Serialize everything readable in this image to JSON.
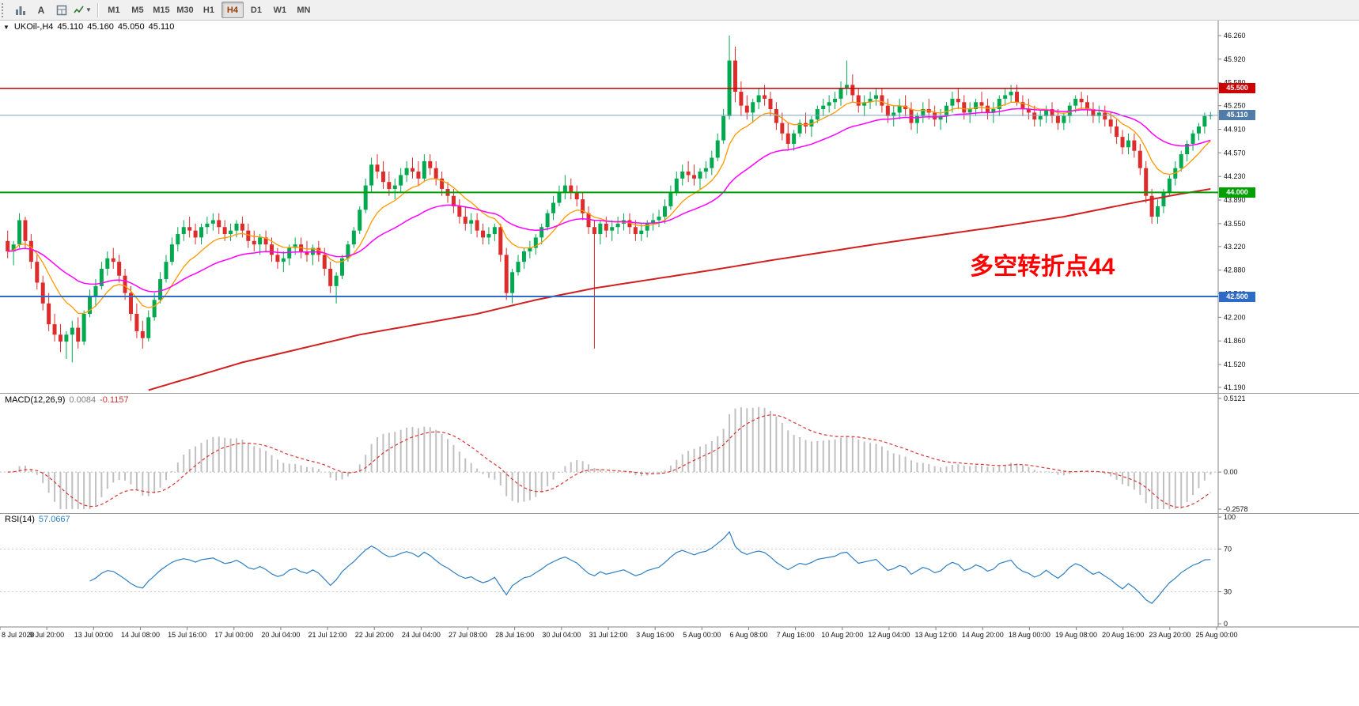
{
  "toolbar": {
    "text_tool_label": "A",
    "timeframes": [
      "M1",
      "M5",
      "M15",
      "M30",
      "H1",
      "H4",
      "D1",
      "W1",
      "MN"
    ],
    "active_timeframe": "H4"
  },
  "symbol_line": {
    "symbol": "UKOil-,H4",
    "open": "45.110",
    "high": "45.160",
    "low": "45.050",
    "close": "45.110"
  },
  "annotation": {
    "text": "多空转折点44",
    "color": "#FF0000"
  },
  "chart_data": {
    "type": "candlestick",
    "symbol": "UKOil-",
    "timeframe": "H4",
    "price_axis": {
      "max": 46.26,
      "min": 41.19,
      "ticks": [
        "46.260",
        "45.920",
        "45.580",
        "45.250",
        "44.910",
        "44.570",
        "44.230",
        "43.890",
        "43.550",
        "43.220",
        "42.880",
        "42.540",
        "42.200",
        "41.860",
        "41.520",
        "41.190"
      ]
    },
    "hlines": [
      {
        "price": 45.5,
        "label": "45.500",
        "color": "#CC0000",
        "width": 1.5
      },
      {
        "price": 44.0,
        "label": "44.000",
        "color": "#00A000",
        "width": 2
      },
      {
        "price": 42.5,
        "label": "42.500",
        "color": "#2E6BC8",
        "width": 2
      }
    ],
    "current_price": {
      "value": 45.11,
      "label": "45.110",
      "line_color": "#7AA0BE",
      "tag_color": "#4F7CA8"
    },
    "colors": {
      "bull": "#00A94F",
      "bear": "#DD2C2C",
      "ma_fast": "#FF9900",
      "ma_mid": "#FF00FF",
      "ma_slow": "#D02020"
    },
    "ma_fast_period": 10,
    "ma_mid_period": 30,
    "ma_slow_points": [
      [
        24,
        41.15
      ],
      [
        40,
        41.55
      ],
      [
        60,
        41.95
      ],
      [
        80,
        42.25
      ],
      [
        90,
        42.45
      ],
      [
        100,
        42.62
      ],
      [
        110,
        42.75
      ],
      [
        120,
        42.88
      ],
      [
        130,
        43.02
      ],
      [
        140,
        43.15
      ],
      [
        150,
        43.28
      ],
      [
        160,
        43.4
      ],
      [
        170,
        43.52
      ],
      [
        180,
        43.65
      ],
      [
        190,
        43.82
      ],
      [
        198,
        43.95
      ],
      [
        205,
        44.05
      ]
    ],
    "candles": [
      [
        43.3,
        43.45,
        43.05,
        43.15
      ],
      [
        43.15,
        43.3,
        42.95,
        43.25
      ],
      [
        43.25,
        43.7,
        43.2,
        43.6
      ],
      [
        43.6,
        43.65,
        43.2,
        43.3
      ],
      [
        43.3,
        43.4,
        42.9,
        43.0
      ],
      [
        43.0,
        43.1,
        42.6,
        42.7
      ],
      [
        42.7,
        42.8,
        42.3,
        42.4
      ],
      [
        42.4,
        42.55,
        42.0,
        42.1
      ],
      [
        42.1,
        42.25,
        41.85,
        41.95
      ],
      [
        41.95,
        42.1,
        41.7,
        41.85
      ],
      [
        41.85,
        42.0,
        41.6,
        41.95
      ],
      [
        41.95,
        42.15,
        41.55,
        42.05
      ],
      [
        42.05,
        42.2,
        41.75,
        41.85
      ],
      [
        41.85,
        42.3,
        41.8,
        42.25
      ],
      [
        42.25,
        42.6,
        42.2,
        42.5
      ],
      [
        42.5,
        42.75,
        42.35,
        42.65
      ],
      [
        42.65,
        43.0,
        42.6,
        42.9
      ],
      [
        42.9,
        43.15,
        42.8,
        43.05
      ],
      [
        43.05,
        43.2,
        42.9,
        43.0
      ],
      [
        43.0,
        43.1,
        42.7,
        42.8
      ],
      [
        42.8,
        42.9,
        42.45,
        42.55
      ],
      [
        42.55,
        42.65,
        42.15,
        42.25
      ],
      [
        42.25,
        42.4,
        41.9,
        42.0
      ],
      [
        42.0,
        42.15,
        41.75,
        41.9
      ],
      [
        41.9,
        42.3,
        41.85,
        42.2
      ],
      [
        42.2,
        42.55,
        42.15,
        42.45
      ],
      [
        42.45,
        42.85,
        42.4,
        42.75
      ],
      [
        42.75,
        43.1,
        42.7,
        43.0
      ],
      [
        43.0,
        43.35,
        42.95,
        43.25
      ],
      [
        43.25,
        43.5,
        43.15,
        43.4
      ],
      [
        43.4,
        43.6,
        43.3,
        43.5
      ],
      [
        43.5,
        43.65,
        43.35,
        43.45
      ],
      [
        43.45,
        43.55,
        43.25,
        43.35
      ],
      [
        43.35,
        43.55,
        43.25,
        43.5
      ],
      [
        43.5,
        43.65,
        43.4,
        43.55
      ],
      [
        43.55,
        43.7,
        43.45,
        43.6
      ],
      [
        43.6,
        43.7,
        43.4,
        43.5
      ],
      [
        43.5,
        43.6,
        43.3,
        43.4
      ],
      [
        43.4,
        43.55,
        43.3,
        43.45
      ],
      [
        43.45,
        43.6,
        43.35,
        43.55
      ],
      [
        43.55,
        43.65,
        43.35,
        43.45
      ],
      [
        43.45,
        43.55,
        43.2,
        43.3
      ],
      [
        43.3,
        43.45,
        43.15,
        43.25
      ],
      [
        43.25,
        43.4,
        43.1,
        43.35
      ],
      [
        43.35,
        43.45,
        43.15,
        43.25
      ],
      [
        43.25,
        43.35,
        43.0,
        43.1
      ],
      [
        43.1,
        43.2,
        42.9,
        43.0
      ],
      [
        43.0,
        43.15,
        42.85,
        43.05
      ],
      [
        43.05,
        43.25,
        42.95,
        43.2
      ],
      [
        43.2,
        43.35,
        43.1,
        43.25
      ],
      [
        43.25,
        43.35,
        43.05,
        43.15
      ],
      [
        43.15,
        43.3,
        43.0,
        43.1
      ],
      [
        43.1,
        43.25,
        42.95,
        43.2
      ],
      [
        43.2,
        43.3,
        43.0,
        43.1
      ],
      [
        43.1,
        43.2,
        42.8,
        42.9
      ],
      [
        42.9,
        43.0,
        42.55,
        42.65
      ],
      [
        42.65,
        42.85,
        42.4,
        42.8
      ],
      [
        42.8,
        43.1,
        42.75,
        43.05
      ],
      [
        43.05,
        43.3,
        43.0,
        43.25
      ],
      [
        43.25,
        43.5,
        43.2,
        43.45
      ],
      [
        43.45,
        43.8,
        43.4,
        43.75
      ],
      [
        43.75,
        44.2,
        43.7,
        44.1
      ],
      [
        44.1,
        44.5,
        44.0,
        44.4
      ],
      [
        44.4,
        44.55,
        44.2,
        44.3
      ],
      [
        44.3,
        44.45,
        44.05,
        44.15
      ],
      [
        44.15,
        44.3,
        43.95,
        44.05
      ],
      [
        44.05,
        44.2,
        43.9,
        44.1
      ],
      [
        44.1,
        44.35,
        44.0,
        44.25
      ],
      [
        44.25,
        44.45,
        44.15,
        44.35
      ],
      [
        44.35,
        44.5,
        44.2,
        44.3
      ],
      [
        44.3,
        44.45,
        44.1,
        44.2
      ],
      [
        44.2,
        44.55,
        44.15,
        44.45
      ],
      [
        44.45,
        44.55,
        44.25,
        44.35
      ],
      [
        44.35,
        44.45,
        44.1,
        44.2
      ],
      [
        44.2,
        44.3,
        43.95,
        44.05
      ],
      [
        44.05,
        44.15,
        43.85,
        43.95
      ],
      [
        43.95,
        44.05,
        43.7,
        43.8
      ],
      [
        43.8,
        43.9,
        43.55,
        43.65
      ],
      [
        43.65,
        43.8,
        43.45,
        43.55
      ],
      [
        43.55,
        43.7,
        43.4,
        43.6
      ],
      [
        43.6,
        43.7,
        43.35,
        43.45
      ],
      [
        43.45,
        43.55,
        43.25,
        43.35
      ],
      [
        43.35,
        43.5,
        43.25,
        43.4
      ],
      [
        43.4,
        43.55,
        43.3,
        43.5
      ],
      [
        43.5,
        43.55,
        43.0,
        43.1
      ],
      [
        43.1,
        43.2,
        42.45,
        42.55
      ],
      [
        42.55,
        42.9,
        42.4,
        42.85
      ],
      [
        42.85,
        43.1,
        42.8,
        43.0
      ],
      [
        43.0,
        43.2,
        42.9,
        43.15
      ],
      [
        43.15,
        43.3,
        43.05,
        43.2
      ],
      [
        43.2,
        43.4,
        43.1,
        43.35
      ],
      [
        43.35,
        43.55,
        43.25,
        43.5
      ],
      [
        43.5,
        43.75,
        43.45,
        43.7
      ],
      [
        43.7,
        43.95,
        43.6,
        43.85
      ],
      [
        43.85,
        44.1,
        43.8,
        44.0
      ],
      [
        44.0,
        44.25,
        43.9,
        44.1
      ],
      [
        44.1,
        44.2,
        43.9,
        44.0
      ],
      [
        44.0,
        44.1,
        43.8,
        43.9
      ],
      [
        43.9,
        44.0,
        43.6,
        43.7
      ],
      [
        43.7,
        43.8,
        43.4,
        43.5
      ],
      [
        43.5,
        43.6,
        41.75,
        43.4
      ],
      [
        43.4,
        43.6,
        43.25,
        43.55
      ],
      [
        43.55,
        43.65,
        43.35,
        43.45
      ],
      [
        43.45,
        43.6,
        43.3,
        43.5
      ],
      [
        43.5,
        43.65,
        43.4,
        43.55
      ],
      [
        43.55,
        43.7,
        43.45,
        43.6
      ],
      [
        43.6,
        43.7,
        43.4,
        43.5
      ],
      [
        43.5,
        43.6,
        43.3,
        43.4
      ],
      [
        43.4,
        43.55,
        43.3,
        43.45
      ],
      [
        43.45,
        43.6,
        43.35,
        43.55
      ],
      [
        43.55,
        43.7,
        43.45,
        43.6
      ],
      [
        43.6,
        43.75,
        43.5,
        43.65
      ],
      [
        43.65,
        43.9,
        43.55,
        43.8
      ],
      [
        43.8,
        44.1,
        43.75,
        44.0
      ],
      [
        44.0,
        44.3,
        43.95,
        44.2
      ],
      [
        44.2,
        44.4,
        44.1,
        44.3
      ],
      [
        44.3,
        44.45,
        44.15,
        44.25
      ],
      [
        44.25,
        44.4,
        44.1,
        44.2
      ],
      [
        44.2,
        44.35,
        44.05,
        44.3
      ],
      [
        44.3,
        44.45,
        44.2,
        44.35
      ],
      [
        44.35,
        44.6,
        44.25,
        44.5
      ],
      [
        44.5,
        44.85,
        44.45,
        44.75
      ],
      [
        44.75,
        45.2,
        44.7,
        45.1
      ],
      [
        45.1,
        46.26,
        45.05,
        45.9
      ],
      [
        45.9,
        46.1,
        45.3,
        45.45
      ],
      [
        45.45,
        45.6,
        45.1,
        45.25
      ],
      [
        45.25,
        45.4,
        45.05,
        45.15
      ],
      [
        45.15,
        45.35,
        45.0,
        45.3
      ],
      [
        45.3,
        45.5,
        45.2,
        45.4
      ],
      [
        45.4,
        45.55,
        45.25,
        45.35
      ],
      [
        45.35,
        45.45,
        45.1,
        45.2
      ],
      [
        45.2,
        45.3,
        44.9,
        45.0
      ],
      [
        45.0,
        45.15,
        44.75,
        44.85
      ],
      [
        44.85,
        45.0,
        44.6,
        44.7
      ],
      [
        44.7,
        44.9,
        44.6,
        44.85
      ],
      [
        44.85,
        45.05,
        44.8,
        45.0
      ],
      [
        45.0,
        45.15,
        44.85,
        44.95
      ],
      [
        44.95,
        45.1,
        44.8,
        45.05
      ],
      [
        45.05,
        45.25,
        45.0,
        45.2
      ],
      [
        45.2,
        45.35,
        45.1,
        45.25
      ],
      [
        45.25,
        45.4,
        45.15,
        45.3
      ],
      [
        45.3,
        45.45,
        45.2,
        45.35
      ],
      [
        45.35,
        45.6,
        45.25,
        45.5
      ],
      [
        45.5,
        45.9,
        45.4,
        45.55
      ],
      [
        45.55,
        45.7,
        45.3,
        45.4
      ],
      [
        45.4,
        45.5,
        45.15,
        45.25
      ],
      [
        45.25,
        45.4,
        45.1,
        45.3
      ],
      [
        45.3,
        45.45,
        45.2,
        45.35
      ],
      [
        45.35,
        45.5,
        45.25,
        45.4
      ],
      [
        45.4,
        45.5,
        45.15,
        45.25
      ],
      [
        45.25,
        45.35,
        45.0,
        45.1
      ],
      [
        45.1,
        45.25,
        44.95,
        45.15
      ],
      [
        45.15,
        45.35,
        45.05,
        45.25
      ],
      [
        45.25,
        45.4,
        45.1,
        45.2
      ],
      [
        45.2,
        45.3,
        44.9,
        45.0
      ],
      [
        45.0,
        45.15,
        44.85,
        45.1
      ],
      [
        45.1,
        45.3,
        45.0,
        45.2
      ],
      [
        45.2,
        45.35,
        45.05,
        45.15
      ],
      [
        45.15,
        45.25,
        44.95,
        45.05
      ],
      [
        45.05,
        45.2,
        44.9,
        45.1
      ],
      [
        45.1,
        45.3,
        45.0,
        45.25
      ],
      [
        45.25,
        45.45,
        45.15,
        45.35
      ],
      [
        45.35,
        45.5,
        45.2,
        45.3
      ],
      [
        45.3,
        45.4,
        45.05,
        45.15
      ],
      [
        45.15,
        45.3,
        45.0,
        45.2
      ],
      [
        45.2,
        45.35,
        45.1,
        45.3
      ],
      [
        45.3,
        45.45,
        45.15,
        45.25
      ],
      [
        45.25,
        45.35,
        45.05,
        45.15
      ],
      [
        45.15,
        45.3,
        45.0,
        45.2
      ],
      [
        45.2,
        45.4,
        45.1,
        45.35
      ],
      [
        45.35,
        45.5,
        45.25,
        45.4
      ],
      [
        45.4,
        45.55,
        45.3,
        45.45
      ],
      [
        45.45,
        45.55,
        45.25,
        45.3
      ],
      [
        45.3,
        45.4,
        45.1,
        45.2
      ],
      [
        45.2,
        45.35,
        45.05,
        45.15
      ],
      [
        45.15,
        45.25,
        44.95,
        45.05
      ],
      [
        45.05,
        45.2,
        44.95,
        45.1
      ],
      [
        45.1,
        45.25,
        45.0,
        45.2
      ],
      [
        45.2,
        45.3,
        45.0,
        45.1
      ],
      [
        45.1,
        45.2,
        44.9,
        45.0
      ],
      [
        45.0,
        45.15,
        44.9,
        45.1
      ],
      [
        45.1,
        45.3,
        45.0,
        45.25
      ],
      [
        45.25,
        45.4,
        45.15,
        45.35
      ],
      [
        45.35,
        45.45,
        45.2,
        45.3
      ],
      [
        45.3,
        45.4,
        45.1,
        45.2
      ],
      [
        45.2,
        45.3,
        45.0,
        45.1
      ],
      [
        45.1,
        45.25,
        45.0,
        45.15
      ],
      [
        45.15,
        45.25,
        44.95,
        45.05
      ],
      [
        45.05,
        45.15,
        44.85,
        44.95
      ],
      [
        44.95,
        45.05,
        44.7,
        44.8
      ],
      [
        44.8,
        44.9,
        44.55,
        44.65
      ],
      [
        44.65,
        44.85,
        44.55,
        44.75
      ],
      [
        44.75,
        44.85,
        44.5,
        44.6
      ],
      [
        44.6,
        44.7,
        44.25,
        44.35
      ],
      [
        44.35,
        44.45,
        43.85,
        43.95
      ],
      [
        43.95,
        44.05,
        43.55,
        43.65
      ],
      [
        43.65,
        43.9,
        43.55,
        43.8
      ],
      [
        43.8,
        44.05,
        43.7,
        44.0
      ],
      [
        44.0,
        44.25,
        43.95,
        44.2
      ],
      [
        44.2,
        44.45,
        44.1,
        44.35
      ],
      [
        44.35,
        44.6,
        44.3,
        44.55
      ],
      [
        44.55,
        44.75,
        44.45,
        44.7
      ],
      [
        44.7,
        44.9,
        44.6,
        44.85
      ],
      [
        44.85,
        45.0,
        44.75,
        44.95
      ],
      [
        44.95,
        45.15,
        44.85,
        45.1
      ],
      [
        45.11,
        45.16,
        45.05,
        45.11
      ]
    ],
    "macd": {
      "label": "MACD(12,26,9)",
      "fast": 12,
      "slow": 26,
      "signal": 9,
      "value_main": "0.0084",
      "value_signal": "-0.1157",
      "ticks": [
        "0.5121",
        "0.00",
        "-0.2578"
      ],
      "max": 0.5121,
      "min": -0.2578,
      "hist_color": "#C0C0C0",
      "signal_color": "#DD3333"
    },
    "rsi": {
      "label": "RSI(14)",
      "period": 14,
      "value": "57.0667",
      "ticks": [
        100,
        70,
        30,
        0
      ],
      "levels": [
        70,
        30
      ],
      "color": "#2E7FC2"
    },
    "time_labels": [
      "8 Jul 2020",
      "9 Jul 20:00",
      "13 Jul 00:00",
      "14 Jul 08:00",
      "15 Jul 16:00",
      "17 Jul 00:00",
      "20 Jul 04:00",
      "21 Jul 12:00",
      "22 Jul 20:00",
      "24 Jul 04:00",
      "27 Jul 08:00",
      "28 Jul 16:00",
      "30 Jul 04:00",
      "31 Jul 12:00",
      "3 Aug 16:00",
      "5 Aug 00:00",
      "6 Aug 08:00",
      "7 Aug 16:00",
      "10 Aug 20:00",
      "12 Aug 04:00",
      "13 Aug 12:00",
      "14 Aug 20:00",
      "18 Aug 00:00",
      "19 Aug 08:00",
      "20 Aug 16:00",
      "23 Aug 20:00",
      "25 Aug 00:00"
    ]
  }
}
